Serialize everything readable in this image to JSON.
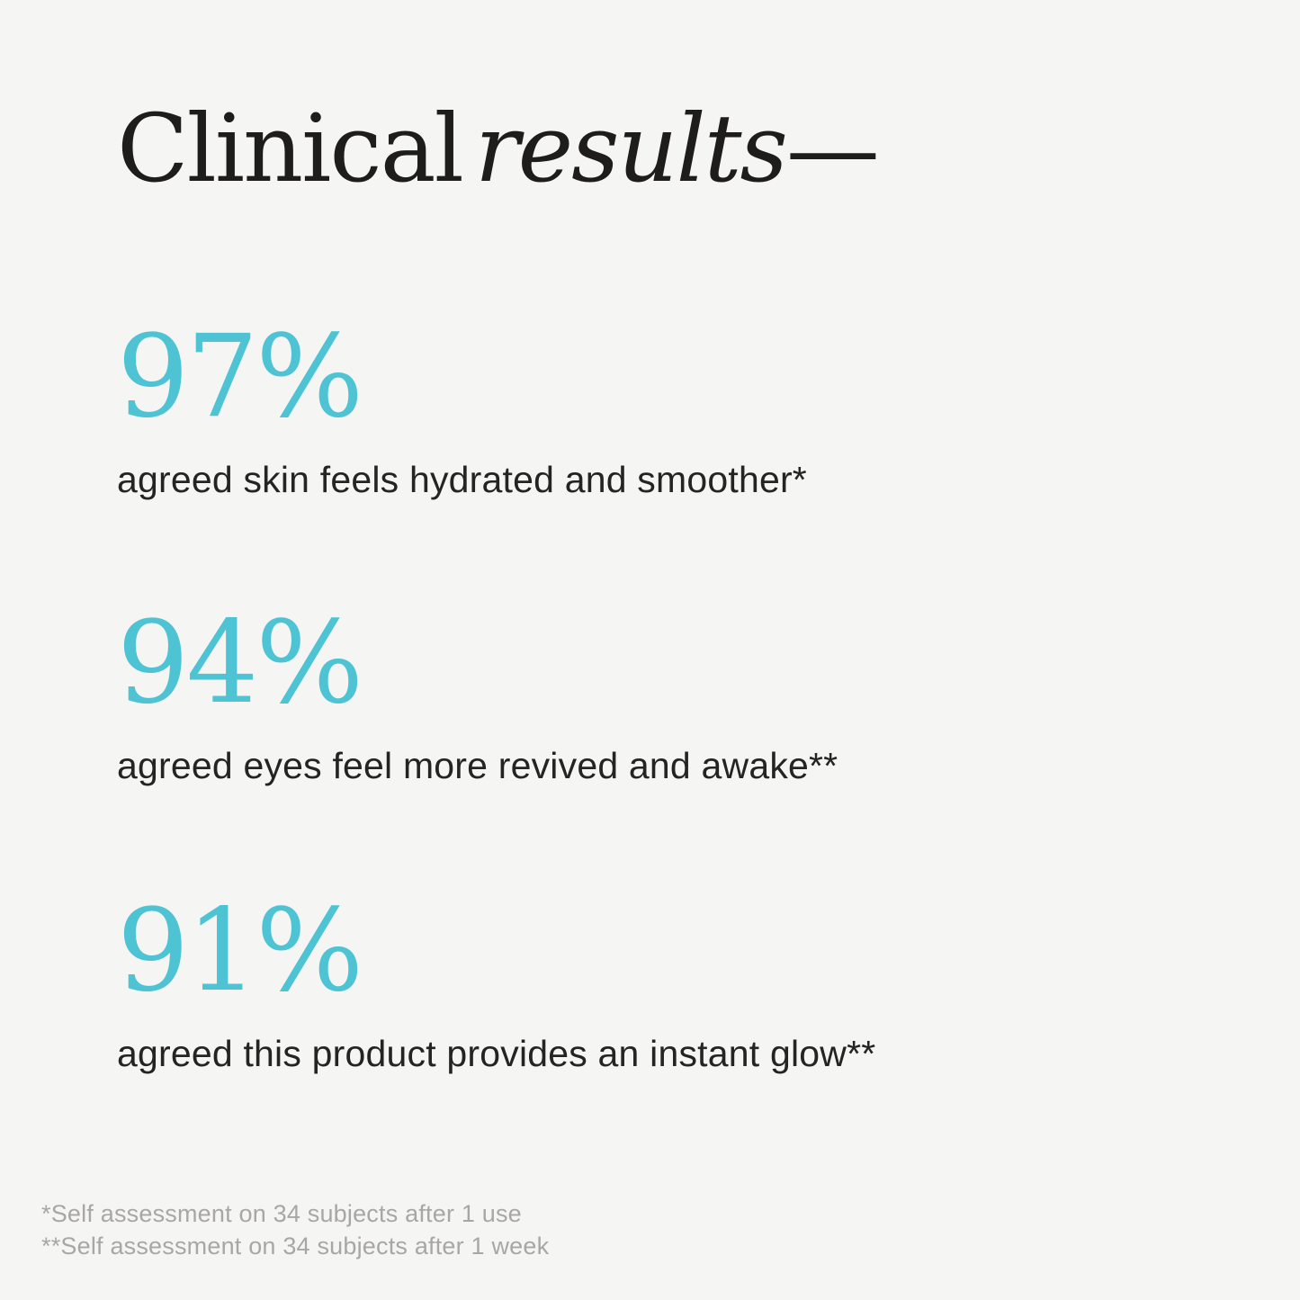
{
  "page": {
    "background_color": "#f5f5f3",
    "text_color": "#1e1d1b",
    "accent_color": "#4ec3d3",
    "footnote_color": "#a8a7a5"
  },
  "title": {
    "regular": "Clinical",
    "italic": "results",
    "dash": "—"
  },
  "stats": [
    {
      "value": "97%",
      "caption": "agreed skin feels hydrated and smoother*"
    },
    {
      "value": "94%",
      "caption": "agreed eyes feel more revived and awake**"
    },
    {
      "value": "91%",
      "caption": "agreed this product provides an instant glow**"
    }
  ],
  "footnotes": [
    "*Self assessment on 34 subjects after 1 use",
    "**Self assessment on 34 subjects after 1 week"
  ]
}
